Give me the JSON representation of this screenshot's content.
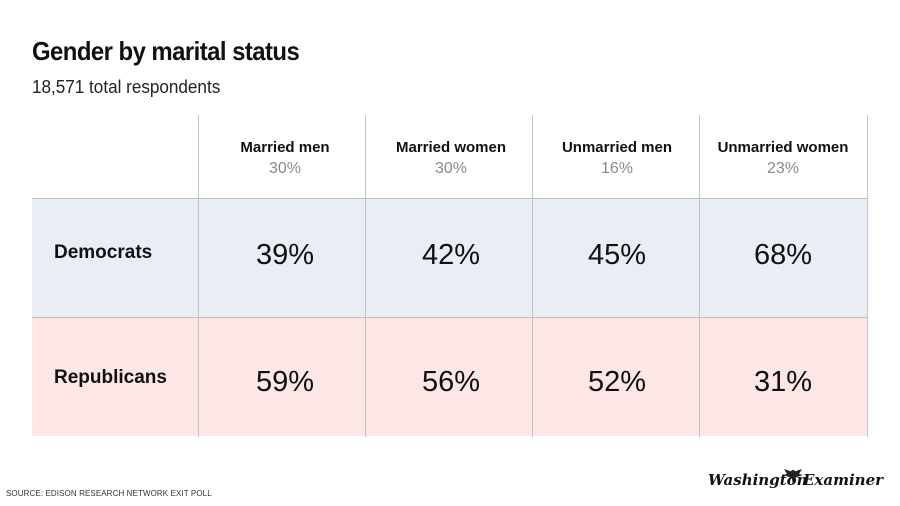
{
  "title": "Gender by marital status",
  "subtitle": "18,571 total respondents",
  "source": "SOURCE: EDISON RESEARCH NETWORK EXIT POLL",
  "logo": {
    "left": "Washington",
    "right": "Examiner"
  },
  "colors": {
    "democrats_row": "#e9edf5",
    "republicans_row": "#fce6e6",
    "share_text": "#8a8a8a"
  },
  "chart_data": {
    "type": "table",
    "title": "Gender by marital status",
    "subtitle": "18,571 total respondents",
    "columns": [
      {
        "name": "Married men",
        "share": "30%"
      },
      {
        "name": "Married women",
        "share": "30%"
      },
      {
        "name": "Unmarried men",
        "share": "16%"
      },
      {
        "name": "Unmarried women",
        "share": "23%"
      }
    ],
    "rows": [
      {
        "label": "Democrats",
        "values": [
          "39%",
          "42%",
          "45%",
          "68%"
        ]
      },
      {
        "label": "Republicans",
        "values": [
          "59%",
          "56%",
          "52%",
          "31%"
        ]
      }
    ]
  }
}
